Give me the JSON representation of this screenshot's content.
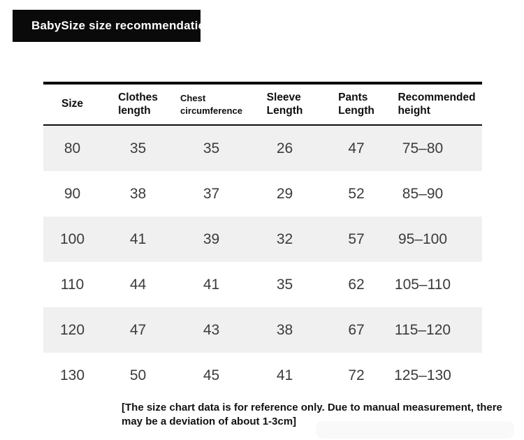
{
  "title_badge": {
    "label": "BabySize size recommendation",
    "bg": "#0a0a0a",
    "text_color": "#ffffff"
  },
  "table": {
    "stripe_color": "#f0f0f0",
    "rule_color": "#000000",
    "headers": [
      {
        "line1": "Size",
        "line2": ""
      },
      {
        "line1": "Clothes",
        "line2": "length"
      },
      {
        "line1": "Chest",
        "line2": "circumference"
      },
      {
        "line1": "Sleeve",
        "line2": "Length"
      },
      {
        "line1": "Pants",
        "line2": "Length"
      },
      {
        "line1": "Recommended",
        "line2": "height"
      }
    ],
    "rows": [
      [
        "80",
        "35",
        "35",
        "26",
        "47",
        "75–80"
      ],
      [
        "90",
        "38",
        "37",
        "29",
        "52",
        "85–90"
      ],
      [
        "100",
        "41",
        "39",
        "32",
        "57",
        "95–100"
      ],
      [
        "110",
        "44",
        "41",
        "35",
        "62",
        "105–110"
      ],
      [
        "120",
        "47",
        "43",
        "38",
        "67",
        "115–120"
      ],
      [
        "130",
        "50",
        "45",
        "41",
        "72",
        "125–130"
      ]
    ]
  },
  "footer": {
    "line1": "[The size chart data is for reference only. Due to manual measurement, there",
    "line2": "may be a deviation of about 1-3cm]"
  }
}
